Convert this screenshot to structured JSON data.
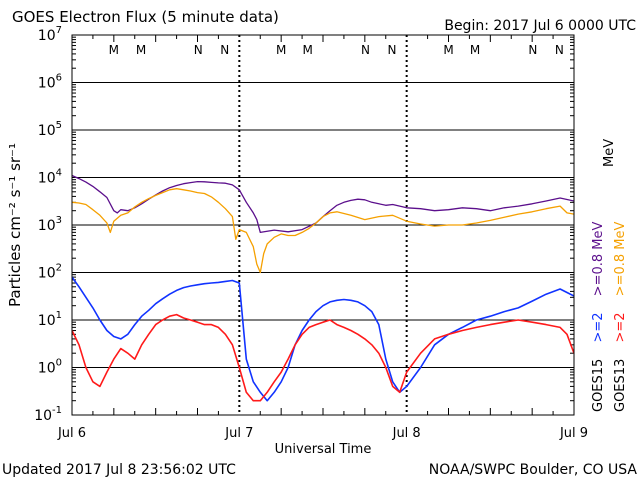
{
  "header": {
    "title": "GOES Electron Flux (5 minute data)",
    "begin": "Begin: 2017 Jul 6 0000 UTC"
  },
  "footer": {
    "updated": "Updated 2017 Jul  8 23:56:02 UTC",
    "credit": "NOAA/SWPC Boulder, CO USA"
  },
  "colors": {
    "goes15_high": "#5b0f8c",
    "goes13_high": "#f5a000",
    "goes15_low": "#1133ff",
    "goes13_low": "#ff1a1a",
    "marker_m": "#cc0000",
    "marker_n": "#0033cc"
  },
  "chart_data": {
    "type": "line",
    "title": "GOES Electron Flux (5 minute data)",
    "xlabel": "Universal Time",
    "ylabel": "Particles cm⁻² s⁻¹ sr⁻¹",
    "y_scale": "log",
    "ylim": [
      0.1,
      10000000
    ],
    "xlim": [
      0,
      72
    ],
    "x_unit": "hours since 2017 Jul 6 0000 UTC",
    "x_ticks": [
      {
        "x": 0,
        "label": "Jul 6"
      },
      {
        "x": 24,
        "label": "Jul 7"
      },
      {
        "x": 48,
        "label": "Jul 8"
      },
      {
        "x": 72,
        "label": "Jul 9"
      }
    ],
    "y_ticks": [
      {
        "y": 0.1,
        "base": "10",
        "exp": "-1"
      },
      {
        "y": 1,
        "base": "10",
        "exp": "0"
      },
      {
        "y": 10,
        "base": "10",
        "exp": "1"
      },
      {
        "y": 100,
        "base": "10",
        "exp": "2"
      },
      {
        "y": 1000,
        "base": "10",
        "exp": "3"
      },
      {
        "y": 10000,
        "base": "10",
        "exp": "4"
      },
      {
        "y": 100000,
        "base": "10",
        "exp": "5"
      },
      {
        "y": 1000000,
        "base": "10",
        "exp": "6"
      },
      {
        "y": 10000000,
        "base": "10",
        "exp": "7"
      }
    ],
    "threshold_line": 1000,
    "grid_y": true,
    "markers": [
      {
        "label": "M",
        "x": 6.0,
        "color": "#cc0000"
      },
      {
        "label": "M",
        "x": 9.9,
        "color": "#0033cc"
      },
      {
        "label": "N",
        "x": 18.1,
        "color": "#cc0000"
      },
      {
        "label": "N",
        "x": 21.9,
        "color": "#0033cc"
      },
      {
        "label": "M",
        "x": 30.0,
        "color": "#cc0000"
      },
      {
        "label": "M",
        "x": 33.8,
        "color": "#0033cc"
      },
      {
        "label": "N",
        "x": 42.1,
        "color": "#cc0000"
      },
      {
        "label": "N",
        "x": 45.9,
        "color": "#0033cc"
      },
      {
        "label": "M",
        "x": 54.0,
        "color": "#cc0000"
      },
      {
        "label": "M",
        "x": 57.8,
        "color": "#0033cc"
      },
      {
        "label": "N",
        "x": 66.1,
        "color": "#cc0000"
      },
      {
        "label": "N",
        "x": 69.9,
        "color": "#0033cc"
      }
    ],
    "legend": {
      "goes13_label": "GOES13",
      "goes15_label": "GOES15",
      "high_energy": ">=0.8 MeV",
      "low_energy": ">=2",
      "low_unit": "MeV"
    },
    "series": [
      {
        "name": ">=0.8 MeV GOES15",
        "color": "#5b0f8c",
        "x": [
          0,
          1,
          2,
          3,
          4,
          5,
          6,
          6.5,
          7,
          8,
          9,
          10,
          11,
          12,
          13,
          14,
          15,
          16,
          17,
          18,
          19,
          20,
          21,
          22,
          23,
          24,
          25,
          26,
          26.5,
          27,
          29,
          31,
          33,
          35,
          36,
          37,
          38,
          39,
          40,
          41,
          42,
          43,
          44,
          45,
          46,
          47,
          48,
          50,
          52,
          54,
          56,
          58,
          60,
          62,
          64,
          66,
          68,
          70,
          72
        ],
        "y": [
          11000,
          9500,
          8000,
          6500,
          5000,
          3800,
          2000,
          1800,
          2100,
          2000,
          2300,
          2800,
          3500,
          4300,
          5200,
          6100,
          6800,
          7400,
          7800,
          8200,
          8100,
          7900,
          7700,
          7600,
          7000,
          5500,
          3000,
          1800,
          1300,
          700,
          780,
          720,
          800,
          1100,
          1500,
          2000,
          2600,
          3000,
          3300,
          3500,
          3400,
          3000,
          2800,
          2600,
          2700,
          2500,
          2300,
          2200,
          2000,
          2100,
          2300,
          2200,
          2000,
          2300,
          2500,
          2800,
          3200,
          3700,
          3200
        ]
      },
      {
        "name": ">=0.8 MeV GOES13",
        "color": "#f5a000",
        "x": [
          0,
          1,
          2,
          3,
          4,
          5,
          5.5,
          6,
          7,
          8,
          9,
          10,
          11,
          12,
          13,
          14,
          15,
          16,
          17,
          18,
          19,
          20,
          21,
          22,
          23,
          23.5,
          24,
          25,
          26,
          26.5,
          27,
          27.5,
          28,
          29,
          30,
          31,
          32,
          33,
          34,
          35,
          36,
          37,
          38,
          40,
          42,
          44,
          46,
          48,
          50,
          52,
          54,
          56,
          58,
          60,
          62,
          64,
          66,
          68,
          70,
          71,
          72
        ],
        "y": [
          3000,
          2900,
          2700,
          2100,
          1600,
          1100,
          700,
          1200,
          1600,
          1800,
          2400,
          3000,
          3600,
          4200,
          4800,
          5500,
          5800,
          5500,
          5200,
          4800,
          4600,
          3900,
          3000,
          2200,
          1500,
          500,
          800,
          700,
          350,
          150,
          100,
          250,
          400,
          550,
          650,
          600,
          600,
          700,
          850,
          1100,
          1500,
          1800,
          1900,
          1600,
          1300,
          1500,
          1600,
          1200,
          1050,
          950,
          1000,
          1000,
          1100,
          1250,
          1450,
          1700,
          1900,
          2200,
          2500,
          1800,
          1700
        ]
      },
      {
        "name": ">=2 MeV GOES15",
        "color": "#1133ff",
        "x": [
          0,
          1,
          2,
          3,
          4,
          5,
          6,
          7,
          8,
          9,
          10,
          11,
          12,
          13,
          14,
          15,
          16,
          17,
          18,
          19,
          20,
          21,
          22,
          23,
          24,
          25,
          26,
          27,
          28,
          29,
          30,
          31,
          32,
          33,
          34,
          35,
          36,
          37,
          38,
          39,
          40,
          41,
          42,
          43,
          44,
          45,
          46,
          47,
          48,
          50,
          52,
          54,
          56,
          58,
          60,
          62,
          64,
          66,
          68,
          70,
          71,
          72
        ],
        "y": [
          80,
          50,
          30,
          18,
          10,
          6,
          4.5,
          4,
          5,
          8,
          12,
          16,
          22,
          28,
          35,
          42,
          48,
          52,
          55,
          58,
          60,
          62,
          65,
          68,
          60,
          1.5,
          0.5,
          0.3,
          0.2,
          0.3,
          0.5,
          1,
          3,
          6,
          10,
          15,
          20,
          24,
          26,
          27,
          26,
          24,
          20,
          15,
          8,
          1.5,
          0.5,
          0.3,
          0.4,
          1,
          3,
          5,
          7,
          10,
          12,
          15,
          18,
          25,
          35,
          45,
          38,
          32
        ]
      },
      {
        "name": ">=2 MeV GOES13",
        "color": "#ff1a1a",
        "x": [
          0,
          1,
          2,
          3,
          4,
          5,
          6,
          7,
          8,
          9,
          10,
          11,
          12,
          13,
          14,
          15,
          16,
          17,
          18,
          19,
          20,
          21,
          22,
          23,
          24,
          25,
          26,
          27,
          28,
          29,
          30,
          31,
          32,
          33,
          34,
          35,
          36,
          37,
          38,
          39,
          40,
          41,
          42,
          43,
          44,
          45,
          46,
          47,
          48,
          50,
          52,
          54,
          56,
          58,
          60,
          62,
          64,
          66,
          68,
          70,
          71,
          72
        ],
        "y": [
          6,
          3,
          1,
          0.5,
          0.4,
          0.8,
          1.5,
          2.5,
          2,
          1.5,
          3,
          5,
          8,
          10,
          12,
          13,
          11,
          10,
          9,
          8,
          8,
          7,
          5,
          3,
          1,
          0.3,
          0.2,
          0.2,
          0.3,
          0.5,
          0.8,
          1.5,
          3,
          5,
          7,
          8,
          9,
          10,
          8,
          7,
          6,
          5,
          4,
          3,
          2,
          1,
          0.4,
          0.3,
          0.8,
          2,
          4,
          5,
          6,
          7,
          8,
          9,
          10,
          9,
          8,
          7,
          5,
          2
        ]
      }
    ]
  }
}
